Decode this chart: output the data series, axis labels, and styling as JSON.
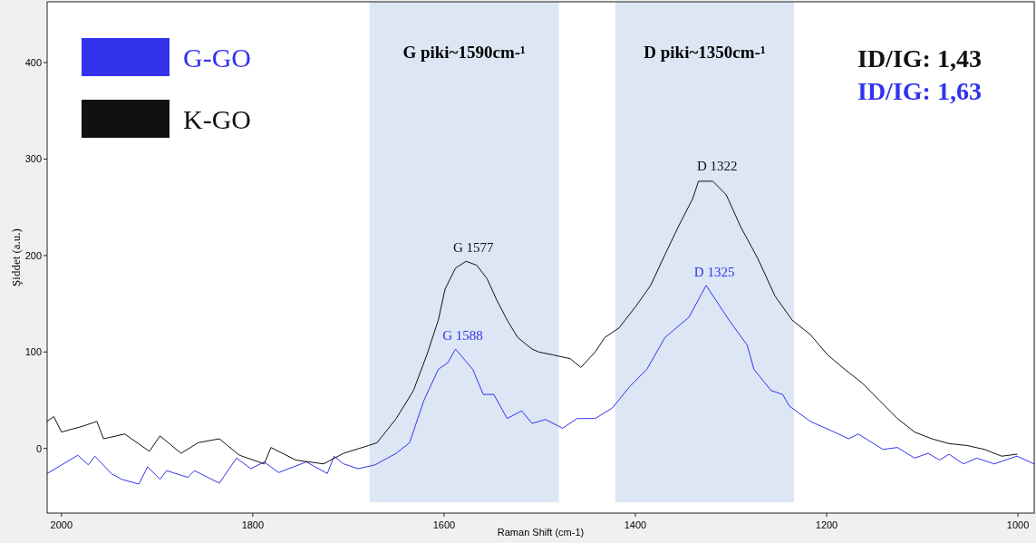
{
  "chart_data": {
    "type": "line",
    "xlabel": "Raman Shift (cm-1)",
    "ylabel": "Şiddet (a.u.)",
    "xlim": [
      2015,
      983
    ],
    "ylim": [
      -67,
      463
    ],
    "xticks": [
      2000,
      1800,
      1600,
      1400,
      1200,
      1000
    ],
    "yticks": [
      0,
      100,
      200,
      300,
      400
    ],
    "grid": false,
    "legend": "top left",
    "marker": "none",
    "line_style": "solid",
    "bands": [
      {
        "axis": "x",
        "from": 1678,
        "to": 1480,
        "label": "G piki~1590cm-¹",
        "color": "#dce6f4"
      },
      {
        "axis": "x",
        "from": 1421,
        "to": 1234,
        "label": "D piki~1350cm-¹",
        "color": "#dce6f4"
      }
    ],
    "annotations": [
      {
        "text": "G 1577",
        "x": 1577,
        "y": 194
      },
      {
        "text": "G 1588",
        "x": 1588,
        "y": 103
      },
      {
        "text": "D 1322",
        "x": 1322,
        "y": 279
      },
      {
        "text": "D 1325",
        "x": 1325,
        "y": 169
      },
      "ID/IG: 1,43",
      "ID/IG: 1,63"
    ],
    "series": [
      {
        "name": "G-GO",
        "color": "#3333ee",
        "x": [
          2015,
          1998,
          1983,
          1972,
          1965,
          1948,
          1937,
          1919,
          1910,
          1897,
          1890,
          1868,
          1861,
          1835,
          1817,
          1802,
          1788,
          1773,
          1744,
          1722,
          1715,
          1705,
          1690,
          1672,
          1650,
          1636,
          1621,
          1606,
          1596,
          1588,
          1570,
          1559,
          1548,
          1534,
          1519,
          1508,
          1494,
          1476,
          1461,
          1442,
          1424,
          1406,
          1388,
          1369,
          1344,
          1326,
          1316,
          1302,
          1283,
          1276,
          1258,
          1246,
          1239,
          1217,
          1192,
          1177,
          1167,
          1141,
          1126,
          1108,
          1094,
          1082,
          1072,
          1057,
          1043,
          1025,
          1001,
          983
        ],
        "values": [
          -26,
          -16,
          -7,
          -17,
          -8,
          -26,
          -32,
          -37,
          -19,
          -32,
          -23,
          -30,
          -23,
          -36,
          -10,
          -21,
          -14,
          -25,
          -14,
          -26,
          -8,
          -16,
          -21,
          -17,
          -5,
          6,
          50,
          82,
          89,
          103,
          82,
          56,
          56,
          31,
          39,
          26,
          30,
          21,
          31,
          31,
          42,
          64,
          82,
          115,
          136,
          169,
          154,
          133,
          107,
          82,
          60,
          56,
          44,
          28,
          17,
          10,
          15,
          -1,
          1,
          -10,
          -5,
          -12,
          -6,
          -16,
          -10,
          -16,
          -8,
          -16
        ]
      },
      {
        "name": "K-GO",
        "color": "#111111",
        "x": [
          2015,
          2008,
          2000,
          1978,
          1963,
          1956,
          1934,
          1908,
          1897,
          1875,
          1857,
          1835,
          1814,
          1788,
          1781,
          1755,
          1726,
          1705,
          1679,
          1670,
          1650,
          1632,
          1618,
          1606,
          1599,
          1588,
          1577,
          1566,
          1555,
          1545,
          1534,
          1523,
          1508,
          1501,
          1486,
          1468,
          1457,
          1442,
          1432,
          1417,
          1399,
          1384,
          1369,
          1355,
          1340,
          1334,
          1319,
          1305,
          1290,
          1272,
          1254,
          1236,
          1217,
          1199,
          1181,
          1163,
          1145,
          1126,
          1108,
          1090,
          1072,
          1053,
          1035,
          1017,
          1001
        ],
        "values": [
          28,
          33,
          17,
          23,
          28,
          10,
          15,
          -3,
          13,
          -5,
          6,
          10,
          -7,
          -16,
          1,
          -12,
          -16,
          -5,
          3,
          6,
          31,
          60,
          97,
          133,
          165,
          187,
          194,
          190,
          176,
          154,
          133,
          115,
          103,
          100,
          97,
          93,
          84,
          100,
          115,
          125,
          148,
          169,
          201,
          230,
          259,
          277,
          277,
          263,
          230,
          197,
          158,
          133,
          118,
          97,
          82,
          68,
          50,
          31,
          17,
          10,
          5,
          3,
          -1,
          -8,
          -6
        ]
      }
    ]
  }
}
